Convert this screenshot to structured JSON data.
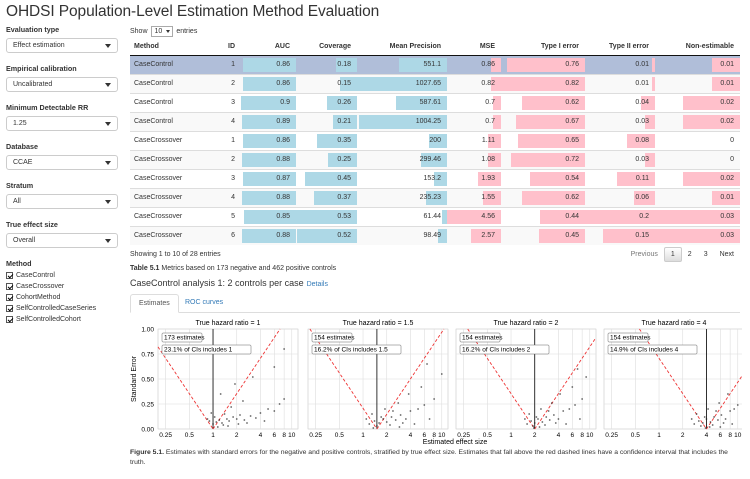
{
  "app": {
    "title": "OHDSI Population-Level Estimation Method Evaluation"
  },
  "sidebar": {
    "evaluation_type": {
      "label": "Evaluation type",
      "value": "Effect estimation"
    },
    "calibration": {
      "label": "Empirical calibration",
      "value": "Uncalibrated"
    },
    "mdrr": {
      "label": "Minimum Detectable RR",
      "value": "1.25"
    },
    "database": {
      "label": "Database",
      "value": "CCAE"
    },
    "stratum": {
      "label": "Stratum",
      "value": "All"
    },
    "true_effect": {
      "label": "True effect size",
      "value": "Overall"
    },
    "method": {
      "label": "Method",
      "items": [
        {
          "label": "CaseControl",
          "checked": true
        },
        {
          "label": "CaseCrossover",
          "checked": true
        },
        {
          "label": "CohortMethod",
          "checked": true
        },
        {
          "label": "SelfControlledCaseSeries",
          "checked": true
        },
        {
          "label": "SelfControlledCohort",
          "checked": true
        }
      ]
    }
  },
  "table": {
    "show_prefix": "Show",
    "page_length": "10",
    "show_suffix": "entries",
    "columns": [
      "Method",
      "ID",
      "AUC",
      "Coverage",
      "Mean Precision",
      "MSE",
      "Type I error",
      "Type II error",
      "Non-estimable"
    ],
    "rows": [
      [
        "CaseControl",
        "1",
        "0.86",
        "0.18",
        "551.1",
        "0.86",
        "0.76",
        "0.01",
        "0.01"
      ],
      [
        "CaseControl",
        "2",
        "0.86",
        "0.15",
        "1027.65",
        "0.82",
        "0.82",
        "0.01",
        "0.01"
      ],
      [
        "CaseControl",
        "3",
        "0.9",
        "0.26",
        "587.61",
        "0.7",
        "0.62",
        "0.04",
        "0.02"
      ],
      [
        "CaseControl",
        "4",
        "0.89",
        "0.21",
        "1004.25",
        "0.7",
        "0.67",
        "0.03",
        "0.02"
      ],
      [
        "CaseCrossover",
        "1",
        "0.86",
        "0.35",
        "200",
        "1.11",
        "0.65",
        "0.08",
        "0"
      ],
      [
        "CaseCrossover",
        "2",
        "0.88",
        "0.25",
        "299.46",
        "1.08",
        "0.72",
        "0.03",
        "0"
      ],
      [
        "CaseCrossover",
        "3",
        "0.87",
        "0.45",
        "153.2",
        "1.93",
        "0.54",
        "0.11",
        "0.02"
      ],
      [
        "CaseCrossover",
        "4",
        "0.88",
        "0.37",
        "235.23",
        "1.55",
        "0.62",
        "0.06",
        "0.01"
      ],
      [
        "CaseCrossover",
        "5",
        "0.85",
        "0.53",
        "61.44",
        "4.56",
        "0.44",
        "0.2",
        "0.03"
      ],
      [
        "CaseCrossover",
        "6",
        "0.88",
        "0.52",
        "98.49",
        "2.57",
        "0.45",
        "0.15",
        "0.03"
      ]
    ],
    "selected_row": 0,
    "bar_colors": {
      "blue": "#add8e6",
      "pink": "#ffc0cb",
      "selected": "#b0bed9"
    },
    "info": "Showing 1 to 10 of 28 entries",
    "pager": {
      "previous": "Previous",
      "pages": [
        "1",
        "2",
        "3"
      ],
      "next": "Next",
      "current": "1"
    }
  },
  "caption_table": {
    "prefix": "Table 5.1",
    "text": " Metrics based on 173 negative and 462 positive controls"
  },
  "analysis": {
    "title": "CaseControl analysis 1: 2 controls per case",
    "details": "Details"
  },
  "tabs": [
    {
      "label": "Estimates",
      "active": true
    },
    {
      "label": "ROC curves",
      "active": false
    }
  ],
  "chart_data": {
    "type": "scatter",
    "ylabel": "Standard Error",
    "xlabel": "Estimated effect size",
    "x_scale": "log",
    "x_ticks": [
      "0.25",
      "0.5",
      "1",
      "2",
      "4",
      "6",
      "8",
      "10"
    ],
    "y_ticks": [
      "0.00",
      "0.25",
      "0.50",
      "0.75",
      "1.00"
    ],
    "ylim": [
      0,
      1
    ],
    "panels": [
      {
        "title": "True hazard ratio = 1",
        "true_value": 1,
        "estimates": "173 estimates",
        "coverage": "23.1% of CIs includes 1",
        "points": [
          [
            0.9,
            0.08
          ],
          [
            1,
            0.05
          ],
          [
            1.1,
            0.07
          ],
          [
            1.2,
            0.09
          ],
          [
            1.3,
            0.06
          ],
          [
            1.5,
            0.1
          ],
          [
            1.6,
            0.08
          ],
          [
            1.8,
            0.12
          ],
          [
            2,
            0.1
          ],
          [
            2.2,
            0.14
          ],
          [
            2.5,
            0.09
          ],
          [
            3,
            0.13
          ],
          [
            3.5,
            0.11
          ],
          [
            4,
            0.16
          ],
          [
            5,
            0.2
          ],
          [
            6,
            0.18
          ],
          [
            7,
            0.25
          ],
          [
            8,
            0.3
          ],
          [
            1.4,
            0.15
          ],
          [
            1.7,
            0.22
          ],
          [
            2.4,
            0.28
          ],
          [
            1.25,
            0.35
          ],
          [
            1.9,
            0.45
          ],
          [
            3.2,
            0.52
          ],
          [
            6,
            0.62
          ],
          [
            8,
            0.8
          ],
          [
            1.05,
            0.12
          ],
          [
            1.35,
            0.04
          ],
          [
            0.95,
            0.16
          ],
          [
            2.7,
            0.06
          ],
          [
            4.5,
            0.08
          ],
          [
            1.15,
            0.02
          ],
          [
            1.55,
            0.03
          ],
          [
            2.1,
            0.05
          ],
          [
            0.85,
            0.1
          ]
        ]
      },
      {
        "title": "True hazard ratio = 1.5",
        "true_value": 1.5,
        "estimates": "154 estimates",
        "coverage": "16.2% of CIs includes 1.5",
        "points": [
          [
            1.2,
            0.05
          ],
          [
            1.4,
            0.08
          ],
          [
            1.6,
            0.06
          ],
          [
            1.8,
            0.1
          ],
          [
            2,
            0.07
          ],
          [
            2.3,
            0.12
          ],
          [
            2.6,
            0.09
          ],
          [
            3,
            0.14
          ],
          [
            3.5,
            0.1
          ],
          [
            4,
            0.18
          ],
          [
            5,
            0.2
          ],
          [
            6,
            0.24
          ],
          [
            8,
            0.3
          ],
          [
            1.3,
            0.15
          ],
          [
            1.9,
            0.2
          ],
          [
            2.8,
            0.26
          ],
          [
            3.8,
            0.35
          ],
          [
            5.5,
            0.42
          ],
          [
            1.1,
            0.1
          ],
          [
            1.5,
            0.03
          ],
          [
            2.2,
            0.04
          ],
          [
            3.2,
            0.06
          ],
          [
            4.5,
            0.05
          ],
          [
            7,
            0.1
          ],
          [
            2.4,
            0.18
          ],
          [
            1.7,
            0.12
          ],
          [
            10,
            0.55
          ],
          [
            6.5,
            0.65
          ],
          [
            2.9,
            0.02
          ],
          [
            1.35,
            0.01
          ]
        ]
      },
      {
        "title": "True hazard ratio = 2",
        "true_value": 2,
        "estimates": "154 estimates",
        "coverage": "16.2% of CIs includes 2",
        "points": [
          [
            1.6,
            0.05
          ],
          [
            1.8,
            0.08
          ],
          [
            2,
            0.06
          ],
          [
            2.2,
            0.1
          ],
          [
            2.5,
            0.07
          ],
          [
            2.8,
            0.12
          ],
          [
            3.1,
            0.09
          ],
          [
            3.5,
            0.14
          ],
          [
            4,
            0.1
          ],
          [
            4.6,
            0.18
          ],
          [
            5.5,
            0.2
          ],
          [
            6.5,
            0.24
          ],
          [
            8,
            0.3
          ],
          [
            1.7,
            0.15
          ],
          [
            2.4,
            0.2
          ],
          [
            3.3,
            0.26
          ],
          [
            4.2,
            0.35
          ],
          [
            6,
            0.42
          ],
          [
            1.5,
            0.1
          ],
          [
            1.9,
            0.03
          ],
          [
            2.7,
            0.04
          ],
          [
            3.7,
            0.06
          ],
          [
            5,
            0.05
          ],
          [
            7.5,
            0.1
          ],
          [
            3,
            0.18
          ],
          [
            2.1,
            0.12
          ],
          [
            9,
            0.52
          ],
          [
            7,
            0.6
          ],
          [
            2.3,
            0.02
          ],
          [
            1.95,
            0.01
          ]
        ]
      },
      {
        "title": "True hazard ratio = 4",
        "true_value": 4,
        "estimates": "154 estimates",
        "coverage": "14.9% of CIs includes 4",
        "points": [
          [
            2.8,
            0.05
          ],
          [
            3.2,
            0.08
          ],
          [
            3.6,
            0.06
          ],
          [
            4,
            0.1
          ],
          [
            4.5,
            0.07
          ],
          [
            5,
            0.12
          ],
          [
            5.6,
            0.09
          ],
          [
            6.2,
            0.14
          ],
          [
            7,
            0.1
          ],
          [
            8,
            0.18
          ],
          [
            9,
            0.2
          ],
          [
            10,
            0.24
          ],
          [
            3,
            0.15
          ],
          [
            4.2,
            0.2
          ],
          [
            5.8,
            0.26
          ],
          [
            7.5,
            0.35
          ],
          [
            2.6,
            0.1
          ],
          [
            3.4,
            0.03
          ],
          [
            4.8,
            0.04
          ],
          [
            6.6,
            0.06
          ],
          [
            8.5,
            0.05
          ],
          [
            5.3,
            0.18
          ],
          [
            3.8,
            0.12
          ],
          [
            4.4,
            0.02
          ],
          [
            3.9,
            0.01
          ],
          [
            6,
            0.02
          ]
        ]
      }
    ]
  },
  "caption_figure": {
    "prefix": "Figure 5.1.",
    "text": " Estimates with standard errors for the negative and positive controls, stratified by true effect size. Estimates that fall above the red dashed lines have a confidence interval that includes the truth."
  }
}
